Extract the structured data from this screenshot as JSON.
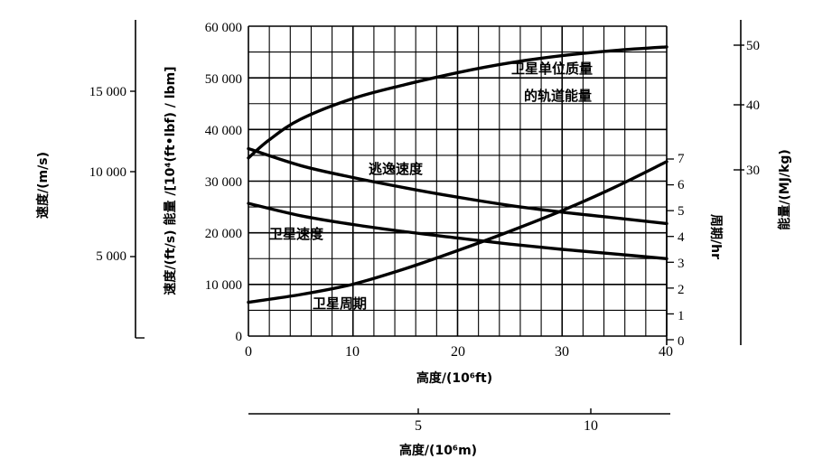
{
  "chart_data": {
    "type": "line",
    "grid": true,
    "x_axis": {
      "label": "高度/(10⁶ft)",
      "range": [
        0,
        40
      ],
      "ticks": [
        "0",
        "10",
        "20",
        "30",
        "40"
      ]
    },
    "x2_axis": {
      "label": "高度/(10⁶m)",
      "ticks": [
        "5",
        "10"
      ]
    },
    "axis_speed_ms": {
      "label": "速度/(m/s)",
      "ticks": [
        "15 000",
        "10 000",
        "5 000"
      ]
    },
    "axis_main": {
      "label": "速度/(ft/s) 能量 /[10⁴(ft•lbf) / lbm]",
      "range": [
        0,
        60000
      ],
      "ticks": [
        "0",
        "10 000",
        "20 000",
        "30 000",
        "40 000",
        "50 000",
        "60 000"
      ]
    },
    "axis_period": {
      "label": "周期/hr",
      "range": [
        0,
        7
      ],
      "ticks": [
        "0",
        "1",
        "2",
        "3",
        "4",
        "5",
        "6",
        "7"
      ]
    },
    "axis_energy": {
      "label": "能量/(MJ/kg)",
      "ticks": [
        "50",
        "40",
        "30"
      ]
    },
    "series": [
      {
        "name": "卫星单位质量的轨道能量",
        "axis": "main",
        "label_lines": [
          "卫星单位质量",
          "的轨道能量"
        ],
        "x": [
          0,
          2,
          5,
          10,
          15,
          20,
          25,
          30,
          35,
          40
        ],
        "y": [
          34500,
          38000,
          42000,
          46000,
          48700,
          51000,
          52900,
          54300,
          55300,
          56000
        ]
      },
      {
        "name": "逃逸速度",
        "axis": "main",
        "label_lines": [
          "逃逸速度"
        ],
        "x": [
          0,
          5,
          10,
          15,
          20,
          25,
          30,
          35,
          40
        ],
        "y": [
          36300,
          33000,
          30700,
          28700,
          26900,
          25300,
          24000,
          22900,
          21800
        ]
      },
      {
        "name": "卫星速度",
        "axis": "main",
        "label_lines": [
          "卫星速度"
        ],
        "x": [
          0,
          5,
          10,
          15,
          20,
          25,
          30,
          35,
          40
        ],
        "y": [
          25700,
          23300,
          21600,
          20200,
          19000,
          17800,
          16800,
          15900,
          15000
        ]
      },
      {
        "name": "卫星周期",
        "axis": "period",
        "label_lines": [
          "卫星周期"
        ],
        "x": [
          0,
          5,
          10,
          15,
          20,
          25,
          30,
          35,
          40
        ],
        "y": [
          1.45,
          1.75,
          2.15,
          2.75,
          3.45,
          4.2,
          5.0,
          5.9,
          6.9
        ]
      }
    ]
  }
}
